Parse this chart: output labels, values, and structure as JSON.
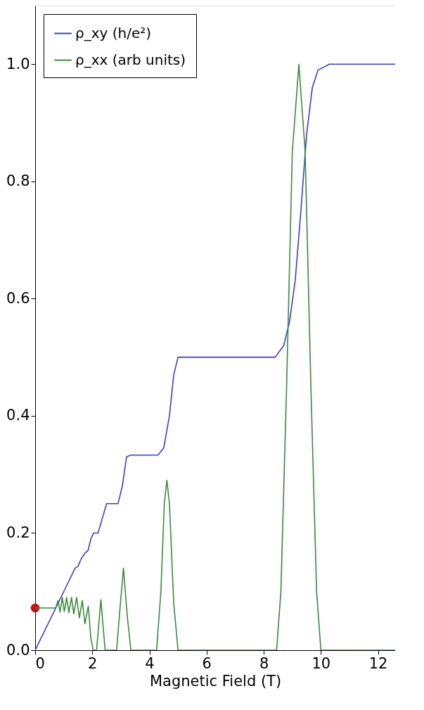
{
  "chart_data": {
    "type": "line",
    "xlabel": "Magnetic Field (T)",
    "xlim": [
      0,
      12.6
    ],
    "ylim": [
      0,
      1.1
    ],
    "xticks": [
      0,
      2,
      4,
      6,
      8,
      10,
      12
    ],
    "yticks": [
      {
        "value": 0,
        "label": "0.0"
      },
      {
        "value": 0.2,
        "label": "0.2"
      },
      {
        "value": 0.4,
        "label": "0.4"
      },
      {
        "value": 0.6,
        "label": "0.6"
      },
      {
        "value": 0.8,
        "label": "0.8"
      },
      {
        "value": 1,
        "label": "1.0"
      }
    ],
    "grid": false,
    "legend": "top left",
    "line_style": "solid",
    "marker": "none",
    "series": [
      {
        "name": "ρ_xy (h/e²)",
        "color": "#3c3cc8",
        "x": [
          0,
          1.0,
          1.4,
          1.5,
          1.6,
          1.75,
          1.85,
          1.95,
          2.05,
          2.2,
          2.35,
          2.5,
          2.9,
          3.05,
          3.2,
          3.35,
          4.3,
          4.5,
          4.7,
          4.85,
          5.0,
          8.4,
          8.7,
          8.9,
          9.1,
          9.3,
          9.5,
          9.7,
          9.9,
          10.3,
          12.6
        ],
        "values": [
          0,
          0.1,
          0.14,
          0.143,
          0.155,
          0.166,
          0.17,
          0.19,
          0.2,
          0.2,
          0.225,
          0.25,
          0.25,
          0.28,
          0.33,
          0.333,
          0.333,
          0.345,
          0.4,
          0.47,
          0.5,
          0.5,
          0.52,
          0.56,
          0.63,
          0.75,
          0.88,
          0.96,
          0.99,
          1.0,
          1.0
        ]
      },
      {
        "name": "ρ_xx (arb units)",
        "color": "#3a8a3a",
        "x": [
          0,
          0.72,
          0.8,
          0.87,
          0.95,
          1.02,
          1.1,
          1.18,
          1.27,
          1.35,
          1.45,
          1.55,
          1.65,
          1.74,
          1.86,
          1.95,
          2.03,
          2.15,
          2.3,
          2.45,
          2.85,
          2.95,
          3.09,
          3.22,
          3.35,
          4.25,
          4.4,
          4.52,
          4.61,
          4.7,
          4.85,
          5.0,
          8.45,
          8.6,
          8.8,
          9.0,
          9.23,
          9.45,
          9.65,
          9.85,
          10.0,
          12.6
        ],
        "values": [
          0.072,
          0.072,
          0.085,
          0.065,
          0.09,
          0.066,
          0.09,
          0.064,
          0.09,
          0.062,
          0.09,
          0.055,
          0.085,
          0.045,
          0.075,
          0.02,
          0,
          0,
          0.086,
          0,
          0,
          0.06,
          0.14,
          0.06,
          0,
          0,
          0.1,
          0.25,
          0.29,
          0.25,
          0.08,
          0,
          0,
          0.1,
          0.45,
          0.85,
          1.0,
          0.85,
          0.45,
          0.1,
          0,
          0
        ]
      },
      {
        "type": "scatter",
        "marker": "circle",
        "color": "#cc1111",
        "x": [
          0
        ],
        "values": [
          0.072
        ]
      }
    ]
  }
}
